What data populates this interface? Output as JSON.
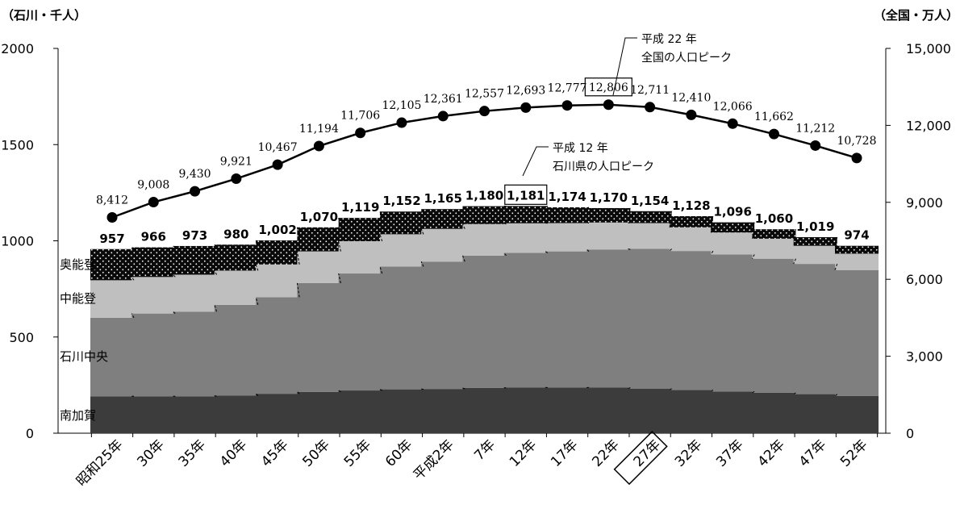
{
  "chart_data": {
    "type": "bar",
    "left_axis_title": "（石川・千人）",
    "right_axis_title": "（全国・万人）",
    "categories": [
      "昭和25年",
      "30年",
      "35年",
      "40年",
      "45年",
      "50年",
      "55年",
      "60年",
      "平成2年",
      "7年",
      "12年",
      "17年",
      "22年",
      "27年",
      "32年",
      "37年",
      "42年",
      "47年",
      "52年"
    ],
    "highlighted_category": "27年",
    "ylim_left": [
      0,
      2000
    ],
    "yticks_left": [
      0,
      500,
      1000,
      1500,
      2000
    ],
    "ylim_right": [
      0,
      15000
    ],
    "yticks_right": [
      0,
      3000,
      6000,
      9000,
      12000,
      15000
    ],
    "ytick_labels_right": [
      "0",
      "3,000",
      "6,000",
      "9,000",
      "12,000",
      "15,000"
    ],
    "stacked_series": [
      {
        "name": "南加賀",
        "color": "#3c3c3c",
        "values": [
          192,
          192,
          192,
          195,
          205,
          215,
          222,
          228,
          230,
          235,
          237,
          238,
          237,
          232,
          225,
          217,
          210,
          203,
          193
        ]
      },
      {
        "name": "石川中央",
        "color": "#7f7f7f",
        "values": [
          408,
          430,
          440,
          472,
          502,
          565,
          608,
          638,
          662,
          688,
          700,
          707,
          718,
          726,
          722,
          712,
          697,
          677,
          655
        ]
      },
      {
        "name": "中能登",
        "color": "#bfbfbf",
        "values": [
          195,
          190,
          192,
          178,
          170,
          165,
          168,
          168,
          170,
          164,
          154,
          147,
          140,
          134,
          123,
          114,
          104,
          94,
          85
        ]
      },
      {
        "name": "奥能登",
        "color": "#111111",
        "values": [
          162,
          154,
          149,
          135,
          125,
          125,
          121,
          118,
          103,
          93,
          90,
          82,
          75,
          62,
          58,
          53,
          49,
          45,
          41
        ]
      }
    ],
    "totals": [
      957,
      966,
      973,
      980,
      1002,
      1070,
      1119,
      1152,
      1165,
      1180,
      1181,
      1174,
      1170,
      1154,
      1128,
      1096,
      1060,
      1019,
      974
    ],
    "total_labels": [
      "957",
      "966",
      "973",
      "980",
      "1,002",
      "1,070",
      "1,119",
      "1,152",
      "1,165",
      "1,180",
      "1,181",
      "1,174",
      "1,170",
      "1,154",
      "1,128",
      "1,096",
      "1,060",
      "1,019",
      "974"
    ],
    "line_series": {
      "axis": "right",
      "values": [
        8412,
        9008,
        9430,
        9921,
        10467,
        11194,
        11706,
        12105,
        12361,
        12557,
        12693,
        12777,
        12806,
        12711,
        12410,
        12066,
        11662,
        11212,
        10728
      ],
      "labels": [
        "8,412",
        "9,008",
        "9,430",
        "9,921",
        "10,467",
        "11,194",
        "11,706",
        "12,105",
        "12,361",
        "12,557",
        "12,693",
        "12,777",
        "12,806",
        "12,711",
        "12,410",
        "12,066",
        "11,662",
        "11,212",
        "10,728"
      ]
    },
    "boxed_line_label_index": 12,
    "boxed_total_label_index": 10,
    "annotations": {
      "national_peak": [
        "平成 22 年",
        "全国の人口ピーク"
      ],
      "ishikawa_peak": [
        "平成 12 年",
        "石川県の人口ピーク"
      ]
    },
    "grid": false
  }
}
